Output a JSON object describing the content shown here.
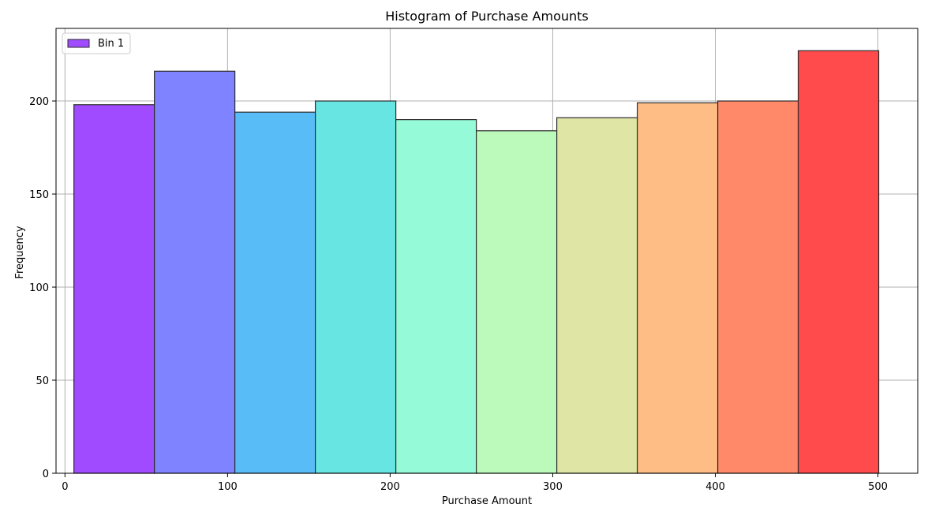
{
  "chart_data": {
    "type": "bar",
    "title": "Histogram of Purchase Amounts",
    "xlabel": "Purchase Amount",
    "ylabel": "Frequency",
    "xlim": [
      -5.5,
      524.5
    ],
    "ylim": [
      0,
      239
    ],
    "xticks": [
      0,
      100,
      200,
      300,
      400,
      500
    ],
    "yticks": [
      0,
      50,
      100,
      150,
      200
    ],
    "grid": true,
    "legend": {
      "position": "top-left",
      "entries": [
        "Bin 1"
      ]
    },
    "bin_edges": [
      5.5,
      55,
      104.5,
      154,
      203.5,
      253,
      302.5,
      352,
      401.5,
      451,
      500.5
    ],
    "values": [
      198,
      216,
      194,
      200,
      190,
      184,
      191,
      199,
      200,
      227
    ],
    "colors": [
      "#a04bff",
      "#7f83ff",
      "#58bdf6",
      "#67e5e3",
      "#94fad8",
      "#bbfabb",
      "#dfe5a4",
      "#febd85",
      "#ff8969",
      "#ff4b4b"
    ]
  }
}
